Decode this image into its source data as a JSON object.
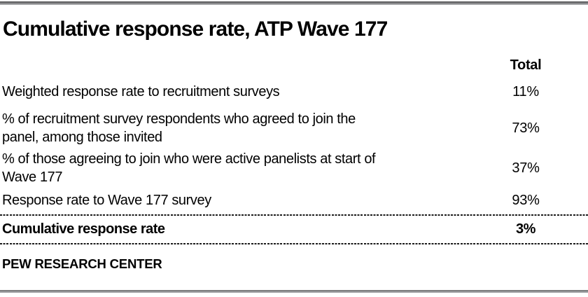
{
  "chart_data": {
    "type": "table",
    "title": "Cumulative response rate, ATP Wave 177",
    "value_column_header": "Total",
    "rows": [
      {
        "label": "Weighted response rate to recruitment surveys",
        "value": "11%"
      },
      {
        "label": "% of recruitment survey respondents who agreed to join the\npanel, among those invited",
        "value": "73%"
      },
      {
        "label": "% of those agreeing to join who were active panelists at start of\nWave 177",
        "value": "37%"
      },
      {
        "label": "Response rate to Wave 177 survey",
        "value": "93%"
      }
    ],
    "total_row": {
      "label": "Cumulative response rate",
      "value": "3%"
    },
    "source": "PEW RESEARCH CENTER",
    "grid": "off",
    "legend": "none"
  },
  "colors": {
    "background": "#ffffff",
    "text": "#000000",
    "rule_gradient_dark": "#4f4f51",
    "rule_gradient_light": "#b9babc",
    "dashed_divider": "#1c1c1c"
  }
}
